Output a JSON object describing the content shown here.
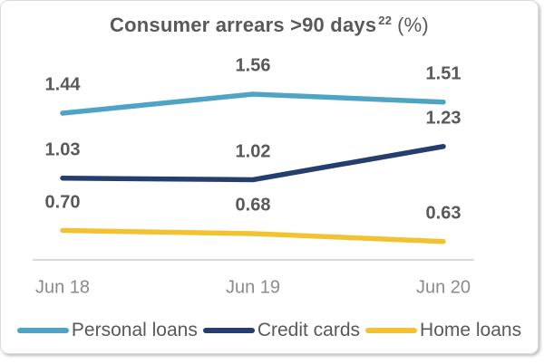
{
  "colors": {
    "background": "#FFFFFF",
    "card_border": "#DCDCDC",
    "title_text": "#58595B",
    "value_label_text": "#58595B",
    "axis_label_text": "#8A8B8D",
    "axis_line": "#D9D9D9",
    "legend_text": "#58595B"
  },
  "chart_data": {
    "type": "line",
    "title": "Consumer arrears >90 days",
    "title_footnote_superscript": "22",
    "title_unit": "(%)",
    "categories": [
      "Jun 18",
      "Jun 19",
      "Jun 20"
    ],
    "series": [
      {
        "name": "Personal loans",
        "color": "#4FA4C5",
        "values": [
          1.44,
          1.56,
          1.51
        ]
      },
      {
        "name": "Credit cards",
        "color": "#253E6E",
        "values": [
          1.03,
          1.02,
          1.23
        ]
      },
      {
        "name": "Home loans",
        "color": "#F2C231",
        "values": [
          0.7,
          0.68,
          0.63
        ]
      }
    ],
    "value_labels_shown": true,
    "value_label_decimals": 2,
    "y_axis_visible": false,
    "grid": false,
    "legend_position": "bottom"
  }
}
